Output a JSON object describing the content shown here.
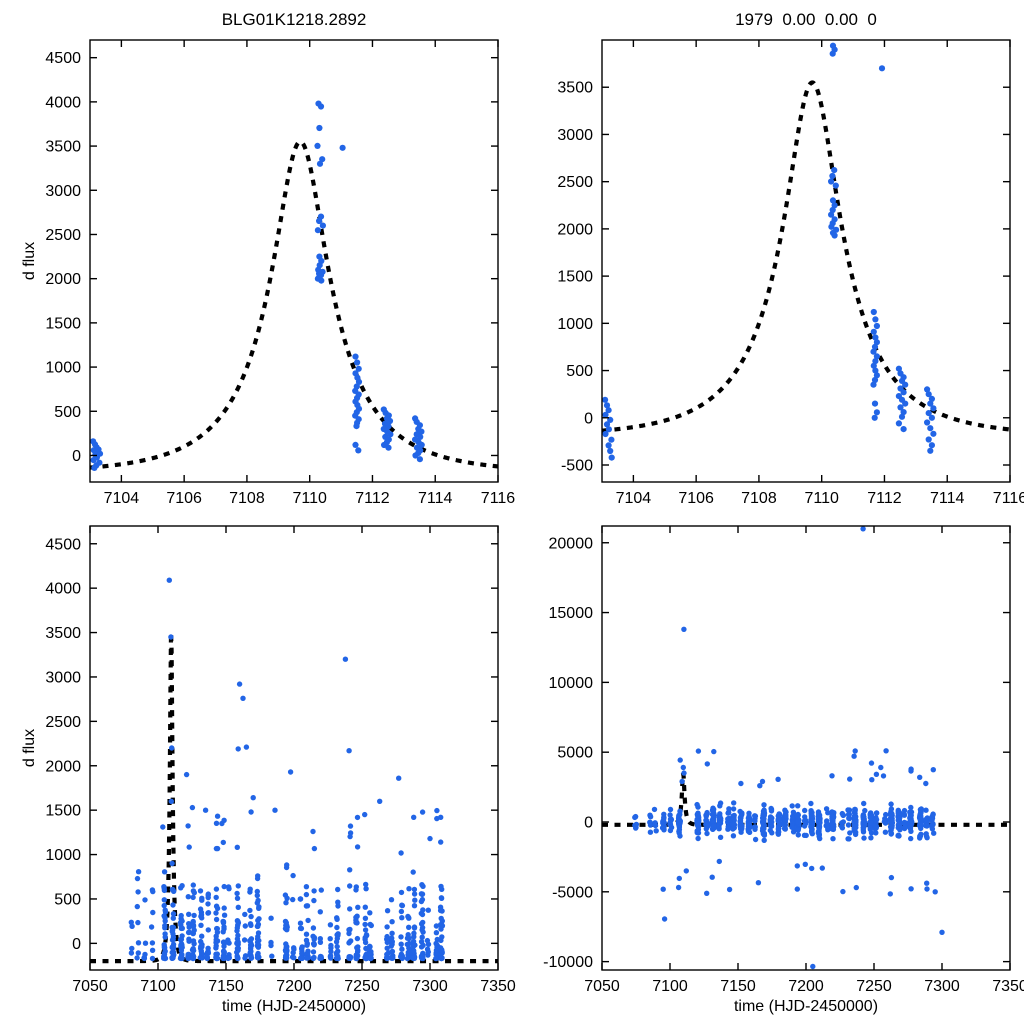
{
  "colors": {
    "point": "#2265e6",
    "model": "#000000",
    "axis": "#000000",
    "background": "#ffffff"
  },
  "chart_data": [
    {
      "id": "top-left-zoom",
      "type": "scatter",
      "title": "BLG01K1218.2892",
      "xlabel": "",
      "ylabel": "d flux",
      "xlim": [
        7103,
        7116
      ],
      "xticks": [
        7104,
        7106,
        7108,
        7110,
        7112,
        7114,
        7116
      ],
      "ylim": [
        -300,
        4700
      ],
      "yticks": [
        0,
        500,
        1000,
        1500,
        2000,
        2500,
        3000,
        3500,
        4000,
        4500
      ],
      "legend": "none",
      "grid": false,
      "model": {
        "shape": "paczynski-dashed",
        "t0": 7109.7,
        "tE": 2.97,
        "u0": 0.3,
        "fs": 1534,
        "baseline": -200,
        "peak": 3550
      },
      "points": [
        [
          7103.1,
          160
        ],
        [
          7103.16,
          125
        ],
        [
          7103.21,
          92
        ],
        [
          7103.12,
          60
        ],
        [
          7103.26,
          38
        ],
        [
          7103.17,
          8
        ],
        [
          7103.22,
          -22
        ],
        [
          7103.11,
          -52
        ],
        [
          7103.3,
          -82
        ],
        [
          7103.2,
          -112
        ],
        [
          7103.27,
          68
        ],
        [
          7103.32,
          20
        ],
        [
          7103.14,
          -140
        ],
        [
          7110.28,
          3980
        ],
        [
          7110.36,
          3948
        ],
        [
          7110.31,
          3705
        ],
        [
          7110.25,
          3502
        ],
        [
          7110.4,
          3352
        ],
        [
          7110.33,
          3300
        ],
        [
          7110.36,
          2702
        ],
        [
          7110.3,
          2652
        ],
        [
          7110.42,
          2600
        ],
        [
          7110.26,
          2548
        ],
        [
          7110.31,
          2250
        ],
        [
          7110.37,
          2200
        ],
        [
          7110.32,
          2152
        ],
        [
          7110.27,
          2100
        ],
        [
          7110.41,
          2078
        ],
        [
          7110.3,
          2058
        ],
        [
          7110.36,
          2040
        ],
        [
          7110.31,
          2020
        ],
        [
          7110.26,
          2000
        ],
        [
          7110.37,
          1978
        ],
        [
          7111.05,
          3480
        ],
        [
          7111.46,
          1118
        ],
        [
          7111.51,
          1052
        ],
        [
          7111.56,
          980
        ],
        [
          7111.46,
          930
        ],
        [
          7111.52,
          880
        ],
        [
          7111.57,
          832
        ],
        [
          7111.5,
          780
        ],
        [
          7111.45,
          730
        ],
        [
          7111.56,
          690
        ],
        [
          7111.51,
          650
        ],
        [
          7111.46,
          610
        ],
        [
          7111.52,
          570
        ],
        [
          7111.57,
          528
        ],
        [
          7111.5,
          490
        ],
        [
          7111.45,
          450
        ],
        [
          7111.56,
          410
        ],
        [
          7111.51,
          370
        ],
        [
          7111.49,
          332
        ],
        [
          7111.46,
          120
        ],
        [
          7111.55,
          58
        ],
        [
          7112.36,
          520
        ],
        [
          7112.42,
          482
        ],
        [
          7112.52,
          452
        ],
        [
          7112.46,
          420
        ],
        [
          7112.56,
          390
        ],
        [
          7112.4,
          360
        ],
        [
          7112.51,
          330
        ],
        [
          7112.36,
          300
        ],
        [
          7112.47,
          270
        ],
        [
          7112.57,
          240
        ],
        [
          7112.41,
          210
        ],
        [
          7112.52,
          180
        ],
        [
          7112.46,
          150
        ],
        [
          7112.37,
          118
        ],
        [
          7112.51,
          88
        ],
        [
          7113.36,
          420
        ],
        [
          7113.41,
          380
        ],
        [
          7113.51,
          342
        ],
        [
          7113.46,
          300
        ],
        [
          7113.56,
          270
        ],
        [
          7113.41,
          240
        ],
        [
          7113.52,
          210
        ],
        [
          7113.36,
          180
        ],
        [
          7113.47,
          150
        ],
        [
          7113.57,
          120
        ],
        [
          7113.42,
          88
        ],
        [
          7113.52,
          58
        ],
        [
          7113.46,
          28
        ],
        [
          7113.37,
          0
        ],
        [
          7113.51,
          -42
        ]
      ]
    },
    {
      "id": "top-right-zoom",
      "type": "scatter",
      "title": "1979  0.00  0.00  0",
      "xlabel": "",
      "ylabel": "",
      "xlim": [
        7103,
        7116
      ],
      "xticks": [
        7104,
        7106,
        7108,
        7110,
        7112,
        7114,
        7116
      ],
      "ylim": [
        -680,
        4000
      ],
      "yticks": [
        -500,
        0,
        500,
        1000,
        1500,
        2000,
        2500,
        3000,
        3500
      ],
      "legend": "none",
      "grid": false,
      "model": {
        "shape": "paczynski-dashed",
        "t0": 7109.7,
        "tE": 2.97,
        "u0": 0.3,
        "fs": 1534,
        "baseline": -200,
        "peak": 3550
      },
      "points": [
        [
          7103.1,
          190
        ],
        [
          7103.16,
          132
        ],
        [
          7103.21,
          80
        ],
        [
          7103.11,
          30
        ],
        [
          7103.26,
          -22
        ],
        [
          7103.16,
          -70
        ],
        [
          7103.22,
          -122
        ],
        [
          7103.11,
          -172
        ],
        [
          7103.3,
          -232
        ],
        [
          7103.21,
          -292
        ],
        [
          7103.26,
          -352
        ],
        [
          7103.31,
          -422
        ],
        [
          7110.36,
          3940
        ],
        [
          7110.41,
          3898
        ],
        [
          7110.35,
          3855
        ],
        [
          7110.4,
          2622
        ],
        [
          7110.34,
          2560
        ],
        [
          7110.3,
          2502
        ],
        [
          7110.45,
          2458
        ],
        [
          7110.36,
          2302
        ],
        [
          7110.41,
          2250
        ],
        [
          7110.35,
          2200
        ],
        [
          7110.3,
          2150
        ],
        [
          7110.41,
          2102
        ],
        [
          7110.35,
          2060
        ],
        [
          7110.31,
          2022
        ],
        [
          7110.46,
          1990
        ],
        [
          7110.36,
          1958
        ],
        [
          7110.41,
          1930
        ],
        [
          7111.92,
          3700
        ],
        [
          7111.66,
          1120
        ],
        [
          7111.71,
          1042
        ],
        [
          7111.76,
          972
        ],
        [
          7111.66,
          910
        ],
        [
          7111.71,
          850
        ],
        [
          7111.76,
          800
        ],
        [
          7111.7,
          750
        ],
        [
          7111.65,
          700
        ],
        [
          7111.76,
          650
        ],
        [
          7111.71,
          600
        ],
        [
          7111.66,
          550
        ],
        [
          7111.71,
          500
        ],
        [
          7111.76,
          450
        ],
        [
          7111.7,
          400
        ],
        [
          7111.65,
          350
        ],
        [
          7111.7,
          150
        ],
        [
          7111.76,
          58
        ],
        [
          7111.69,
          0
        ],
        [
          7112.46,
          520
        ],
        [
          7112.51,
          470
        ],
        [
          7112.61,
          430
        ],
        [
          7112.56,
          390
        ],
        [
          7112.66,
          350
        ],
        [
          7112.51,
          310
        ],
        [
          7112.61,
          270
        ],
        [
          7112.46,
          230
        ],
        [
          7112.56,
          190
        ],
        [
          7112.66,
          150
        ],
        [
          7112.51,
          110
        ],
        [
          7112.61,
          60
        ],
        [
          7112.56,
          10
        ],
        [
          7112.46,
          -60
        ],
        [
          7112.61,
          -120
        ],
        [
          7113.36,
          300
        ],
        [
          7113.41,
          250
        ],
        [
          7113.51,
          200
        ],
        [
          7113.46,
          150
        ],
        [
          7113.56,
          100
        ],
        [
          7113.41,
          50
        ],
        [
          7113.51,
          0
        ],
        [
          7113.36,
          -50
        ],
        [
          7113.46,
          -110
        ],
        [
          7113.56,
          -170
        ],
        [
          7113.41,
          -230
        ],
        [
          7113.51,
          -290
        ],
        [
          7113.46,
          -350
        ]
      ]
    },
    {
      "id": "bottom-left-full",
      "type": "scatter",
      "title": "",
      "xlabel": "time (HJD-2450000)",
      "ylabel": "d flux",
      "xlim": [
        7050,
        7350
      ],
      "xticks": [
        7050,
        7100,
        7150,
        7200,
        7250,
        7300,
        7350
      ],
      "ylim": [
        -300,
        4700
      ],
      "yticks": [
        0,
        500,
        1000,
        1500,
        2000,
        2500,
        3000,
        3500,
        4000,
        4500
      ],
      "legend": "none",
      "grid": false,
      "model": {
        "shape": "paczynski-dashed",
        "t0": 7109.7,
        "tE": 2.97,
        "u0": 0.3,
        "fs": 1534,
        "baseline": -200,
        "peak": 3550
      },
      "noise": {
        "seed": 7,
        "x0": 7072,
        "x1": 7312,
        "nights": 46,
        "skip": 0.12,
        "nmin": 4,
        "nmax": 34,
        "sparse_before": 7100,
        "mode": "skew",
        "ybase": -170,
        "yspan": 820,
        "tail_p": 0.045,
        "tail0": 650,
        "tail1": 1550
      },
      "outliers": [
        [
          7108.3,
          4090
        ],
        [
          7103.5,
          1310
        ],
        [
          7121,
          1900
        ],
        [
          7160,
          2920
        ],
        [
          7162.5,
          2760
        ],
        [
          7165,
          2210
        ],
        [
          7159,
          2190
        ],
        [
          7170,
          1640
        ],
        [
          7186,
          1500
        ],
        [
          7197.5,
          1930
        ],
        [
          7237.8,
          3200
        ],
        [
          7240.5,
          2170
        ],
        [
          7252,
          1450
        ],
        [
          7263,
          1600
        ],
        [
          7277,
          1860
        ],
        [
          7288,
          1420
        ],
        [
          7300,
          1180
        ],
        [
          7214,
          1260
        ],
        [
          7135,
          1500
        ],
        [
          7147,
          1350
        ],
        [
          7109.5,
          3450
        ],
        [
          7110.1,
          2200
        ],
        [
          7109.8,
          1600
        ],
        [
          7110.4,
          900
        ]
      ]
    },
    {
      "id": "bottom-right-full",
      "type": "scatter",
      "title": "",
      "xlabel": "time (HJD-2450000)",
      "ylabel": "",
      "xlim": [
        7050,
        7350
      ],
      "xticks": [
        7050,
        7100,
        7150,
        7200,
        7250,
        7300,
        7350
      ],
      "ylim": [
        -10600,
        21200
      ],
      "yticks": [
        -10000,
        -5000,
        0,
        5000,
        10000,
        15000,
        20000
      ],
      "legend": "none",
      "grid": false,
      "model": {
        "shape": "paczynski-dashed",
        "t0": 7109.7,
        "tE": 2.97,
        "u0": 0.3,
        "fs": 1534,
        "baseline": -200,
        "peak": 3550
      },
      "noise": {
        "seed": 11,
        "x0": 7072,
        "x1": 7312,
        "nights": 46,
        "skip": 0.1,
        "nmin": 8,
        "nmax": 42,
        "sparse_before": 7092,
        "mode": "sym",
        "smin": 500,
        "smax": 2100,
        "tail_p": 0.04,
        "tail0": 2600,
        "tail1": 5200
      },
      "outliers": [
        [
          7110.2,
          13800
        ],
        [
          7242,
          21000
        ],
        [
          7205,
          -10350
        ],
        [
          7300,
          -7900
        ],
        [
          7262,
          -5150
        ],
        [
          7237,
          -4700
        ],
        [
          7165,
          -4350
        ],
        [
          7131,
          -3950
        ],
        [
          7112,
          -3500
        ],
        [
          7096,
          -6950
        ],
        [
          7109.8,
          3900
        ],
        [
          7110.3,
          3500
        ],
        [
          7108.9,
          2900
        ],
        [
          7168,
          2900
        ],
        [
          7166,
          2600
        ],
        [
          7255,
          3900
        ],
        [
          7257,
          3300
        ],
        [
          7212,
          -3300
        ],
        [
          7289,
          -4800
        ],
        [
          7295,
          -5000
        ]
      ]
    }
  ]
}
